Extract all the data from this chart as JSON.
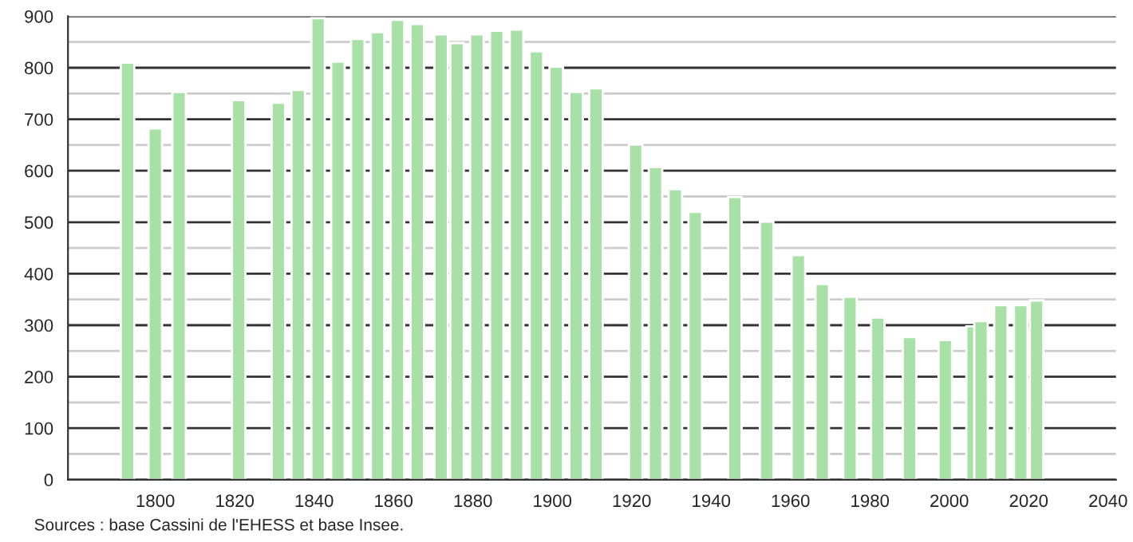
{
  "chart_data": {
    "type": "bar",
    "x": [
      1793,
      1800,
      1806,
      1821,
      1831,
      1836,
      1841,
      1846,
      1851,
      1856,
      1861,
      1866,
      1872,
      1876,
      1881,
      1886,
      1891,
      1896,
      1901,
      1906,
      1911,
      1921,
      1926,
      1931,
      1936,
      1946,
      1954,
      1962,
      1968,
      1975,
      1982,
      1990,
      1999,
      2006,
      2008,
      2013,
      2018,
      2022
    ],
    "values": [
      810,
      682,
      753,
      737,
      732,
      757,
      896,
      812,
      856,
      869,
      893,
      885,
      865,
      848,
      865,
      872,
      874,
      832,
      802,
      753,
      760,
      651,
      607,
      564,
      520,
      549,
      501,
      436,
      380,
      355,
      315,
      277,
      271,
      298,
      308,
      339,
      339,
      348
    ],
    "color": "#a8e0a8",
    "xlim": [
      1778,
      2042
    ],
    "xticks": [
      1800,
      1820,
      1840,
      1860,
      1880,
      1900,
      1920,
      1940,
      1960,
      1980,
      2000,
      2020,
      2040
    ],
    "ylim": [
      0,
      900
    ],
    "yticks": [
      0,
      {
        "value": 50,
        "label": null
      },
      100,
      {
        "value": 150,
        "label": null
      },
      200,
      {
        "value": 250,
        "label": null
      },
      300,
      {
        "value": 350,
        "label": null
      },
      400,
      {
        "value": 450,
        "label": null
      },
      500,
      {
        "value": 550,
        "label": null
      },
      600,
      {
        "value": 650,
        "label": null
      },
      700,
      {
        "value": 750,
        "label": null
      },
      800,
      {
        "value": 850,
        "label": null
      },
      900
    ],
    "grid": "y",
    "annotations": [
      "Sources : base Cassini de l'EHESS et base Insee."
    ]
  }
}
